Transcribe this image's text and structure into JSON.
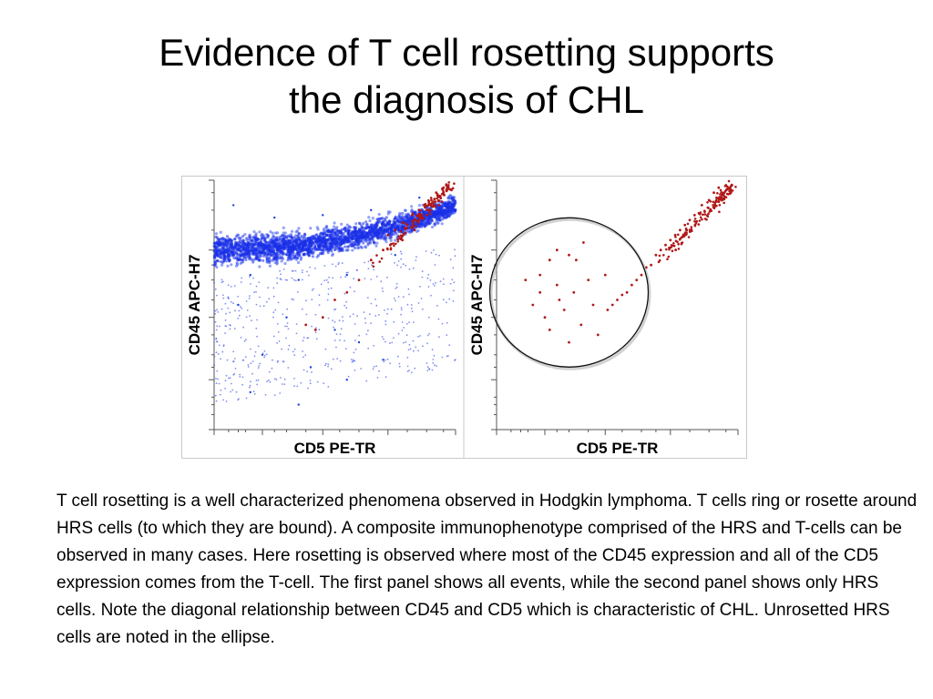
{
  "slide": {
    "title_line1": "Evidence of T cell rosetting supports",
    "title_line2": "the diagnosis of CHL",
    "caption": "T cell rosetting is a well characterized phenomena observed in Hodgkin lymphoma. T cells ring or rosette around HRS cells (to which they are bound).  A composite immunophenotype comprised of the HRS and T-cells can be observed in many cases. Here rosetting  is observed where most of the CD45 expression and all of the CD5 expression comes from the T-cell. The first panel shows all events, while the second panel shows only HRS cells.  Note the diagonal relationship between CD45 and CD5 which is characteristic of CHL. Unrosetted HRS cells are noted in the ellipse."
  },
  "chart_data": [
    {
      "type": "scatter",
      "panel": "all events",
      "xlabel": "CD5  PE-TR",
      "ylabel": "CD45  APC-H7",
      "xlim": [
        0,
        1
      ],
      "ylim": [
        0,
        1
      ],
      "grid": false,
      "series": [
        {
          "color": "#1f3fe0",
          "description": "dense blue cloud of all events along upper diagonal band",
          "points": [
            [
              0.05,
              0.72
            ],
            [
              0.12,
              0.75
            ],
            [
              0.2,
              0.73
            ],
            [
              0.3,
              0.7
            ],
            [
              0.4,
              0.74
            ],
            [
              0.5,
              0.72
            ],
            [
              0.6,
              0.76
            ],
            [
              0.7,
              0.8
            ],
            [
              0.8,
              0.82
            ],
            [
              0.9,
              0.86
            ],
            [
              0.15,
              0.62
            ],
            [
              0.35,
              0.6
            ],
            [
              0.55,
              0.62
            ],
            [
              0.75,
              0.7
            ],
            [
              0.25,
              0.85
            ],
            [
              0.45,
              0.86
            ],
            [
              0.65,
              0.88
            ],
            [
              0.85,
              0.93
            ],
            [
              0.1,
              0.5
            ],
            [
              0.3,
              0.45
            ],
            [
              0.5,
              0.4
            ],
            [
              0.6,
              0.35
            ],
            [
              0.2,
              0.3
            ],
            [
              0.4,
              0.25
            ],
            [
              0.15,
              0.15
            ],
            [
              0.35,
              0.1
            ],
            [
              0.55,
              0.2
            ],
            [
              0.7,
              0.28
            ],
            [
              0.08,
              0.9
            ],
            [
              0.95,
              0.95
            ]
          ]
        },
        {
          "color": "#b01818",
          "description": "red HRS cell events",
          "points": [
            [
              0.72,
              0.78
            ],
            [
              0.75,
              0.8
            ],
            [
              0.78,
              0.83
            ],
            [
              0.8,
              0.82
            ],
            [
              0.82,
              0.86
            ],
            [
              0.85,
              0.88
            ],
            [
              0.87,
              0.9
            ],
            [
              0.9,
              0.92
            ],
            [
              0.92,
              0.95
            ],
            [
              0.95,
              0.97
            ],
            [
              0.7,
              0.72
            ],
            [
              0.73,
              0.74
            ],
            [
              0.65,
              0.68
            ],
            [
              0.6,
              0.6
            ],
            [
              0.55,
              0.55
            ],
            [
              0.5,
              0.52
            ],
            [
              0.45,
              0.45
            ],
            [
              0.42,
              0.4
            ],
            [
              0.38,
              0.42
            ],
            [
              0.85,
              0.84
            ],
            [
              0.88,
              0.86
            ],
            [
              0.93,
              0.9
            ],
            [
              0.78,
              0.76
            ],
            [
              0.83,
              0.8
            ]
          ]
        }
      ]
    },
    {
      "type": "scatter",
      "panel": "HRS cells only",
      "xlabel": "CD5  PE-TR",
      "ylabel": "CD45  APC-H7",
      "xlim": [
        0,
        1
      ],
      "ylim": [
        0,
        1
      ],
      "grid": false,
      "annotation": "ellipse around unrosetted HRS cells",
      "series": [
        {
          "color": "#b01818",
          "points": [
            [
              0.85,
              0.9
            ],
            [
              0.88,
              0.92
            ],
            [
              0.9,
              0.95
            ],
            [
              0.92,
              0.97
            ],
            [
              0.95,
              0.98
            ],
            [
              0.82,
              0.86
            ],
            [
              0.8,
              0.84
            ],
            [
              0.78,
              0.82
            ],
            [
              0.76,
              0.8
            ],
            [
              0.74,
              0.78
            ],
            [
              0.72,
              0.76
            ],
            [
              0.7,
              0.74
            ],
            [
              0.68,
              0.72
            ],
            [
              0.66,
              0.7
            ],
            [
              0.64,
              0.66
            ],
            [
              0.62,
              0.65
            ],
            [
              0.6,
              0.62
            ],
            [
              0.58,
              0.6
            ],
            [
              0.56,
              0.58
            ],
            [
              0.54,
              0.55
            ],
            [
              0.52,
              0.54
            ],
            [
              0.5,
              0.52
            ],
            [
              0.48,
              0.5
            ],
            [
              0.46,
              0.48
            ],
            [
              0.3,
              0.7
            ],
            [
              0.22,
              0.68
            ],
            [
              0.18,
              0.62
            ],
            [
              0.25,
              0.58
            ],
            [
              0.32,
              0.55
            ],
            [
              0.38,
              0.6
            ],
            [
              0.15,
              0.5
            ],
            [
              0.2,
              0.45
            ],
            [
              0.28,
              0.48
            ],
            [
              0.35,
              0.42
            ],
            [
              0.4,
              0.5
            ],
            [
              0.42,
              0.38
            ],
            [
              0.3,
              0.35
            ],
            [
              0.22,
              0.4
            ],
            [
              0.18,
              0.55
            ],
            [
              0.45,
              0.62
            ],
            [
              0.36,
              0.75
            ],
            [
              0.25,
              0.72
            ],
            [
              0.12,
              0.6
            ],
            [
              0.26,
              0.52
            ],
            [
              0.33,
              0.68
            ]
          ]
        }
      ]
    }
  ]
}
